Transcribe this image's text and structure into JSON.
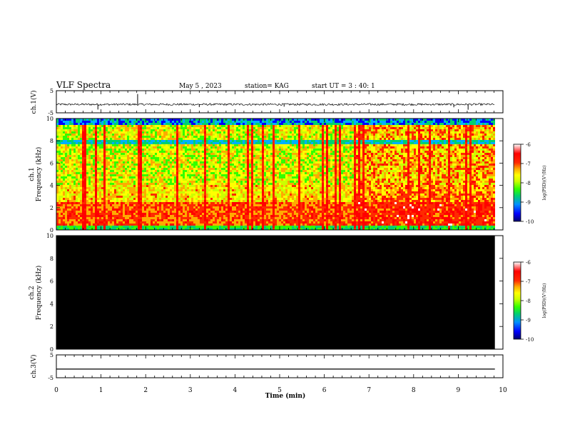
{
  "header": {
    "title": "VLF Spectra",
    "date": "May 5 , 2023",
    "station": "station= KAG",
    "start": "start  UT =   3 : 40: 1"
  },
  "colors": {
    "spectrogram_scale": [
      "#000080",
      "#0000ff",
      "#00b0ff",
      "#00d070",
      "#33ff00",
      "#ccff00",
      "#ffff00",
      "#ffaa00",
      "#ff2a00",
      "#ff0000",
      "#ffffff"
    ],
    "ch2_fill": "#000000"
  },
  "chart_data": [
    {
      "type": "line",
      "name": "ch1-waveform",
      "ylabel": "ch.1(V)",
      "ylim": [
        -5,
        5
      ],
      "yticks": [
        "5",
        "-5"
      ],
      "xlim": [
        0,
        10
      ],
      "baseline_v": -1.2,
      "spikes": [
        {
          "t": 0.93,
          "v": -3.5
        },
        {
          "t": 1.82,
          "v": 3.5
        },
        {
          "t": 3.2,
          "v": -2.4
        },
        {
          "t": 5.1,
          "v": -2.2
        },
        {
          "t": 8.9,
          "v": -2.5
        },
        {
          "t": 9.22,
          "v": -3.6
        }
      ]
    },
    {
      "type": "heatmap",
      "name": "ch1-spectrogram",
      "ylabel": [
        "ch.1",
        "Frequency  (kHz)"
      ],
      "ylim": [
        0,
        10
      ],
      "yticks": [
        "0",
        "2",
        "4",
        "6",
        "8",
        "10"
      ],
      "xlim": [
        0,
        10
      ],
      "data_end_min": 9.82,
      "colorbar": {
        "label": "log(PSD)(V²/Hz)",
        "ticks": [
          "-6",
          "-7",
          "-8",
          "-9",
          "-10"
        ]
      }
    },
    {
      "type": "heatmap",
      "name": "ch2-spectrogram",
      "ylabel": [
        "ch.2",
        "Frequency  (kHz)"
      ],
      "ylim": [
        0,
        10
      ],
      "yticks": [
        "0",
        "2",
        "4",
        "6",
        "8",
        "10"
      ],
      "xlim": [
        0,
        10
      ],
      "data_end_min": 9.82,
      "colorbar": {
        "label": "log(PSD)(V²/Hz)",
        "ticks": [
          "-6",
          "-7",
          "-8",
          "-9",
          "-10"
        ]
      }
    },
    {
      "type": "line",
      "name": "ch3-waveform",
      "ylabel": "ch.3(V)",
      "ylim": [
        -5,
        5
      ],
      "yticks": [
        "5",
        "-5"
      ],
      "xlim": [
        0,
        10
      ],
      "baseline_v": -1.2,
      "xlabel": "Time  (min)",
      "xticks": [
        "0",
        "1",
        "2",
        "3",
        "4",
        "5",
        "6",
        "7",
        "8",
        "9",
        "10"
      ]
    }
  ]
}
